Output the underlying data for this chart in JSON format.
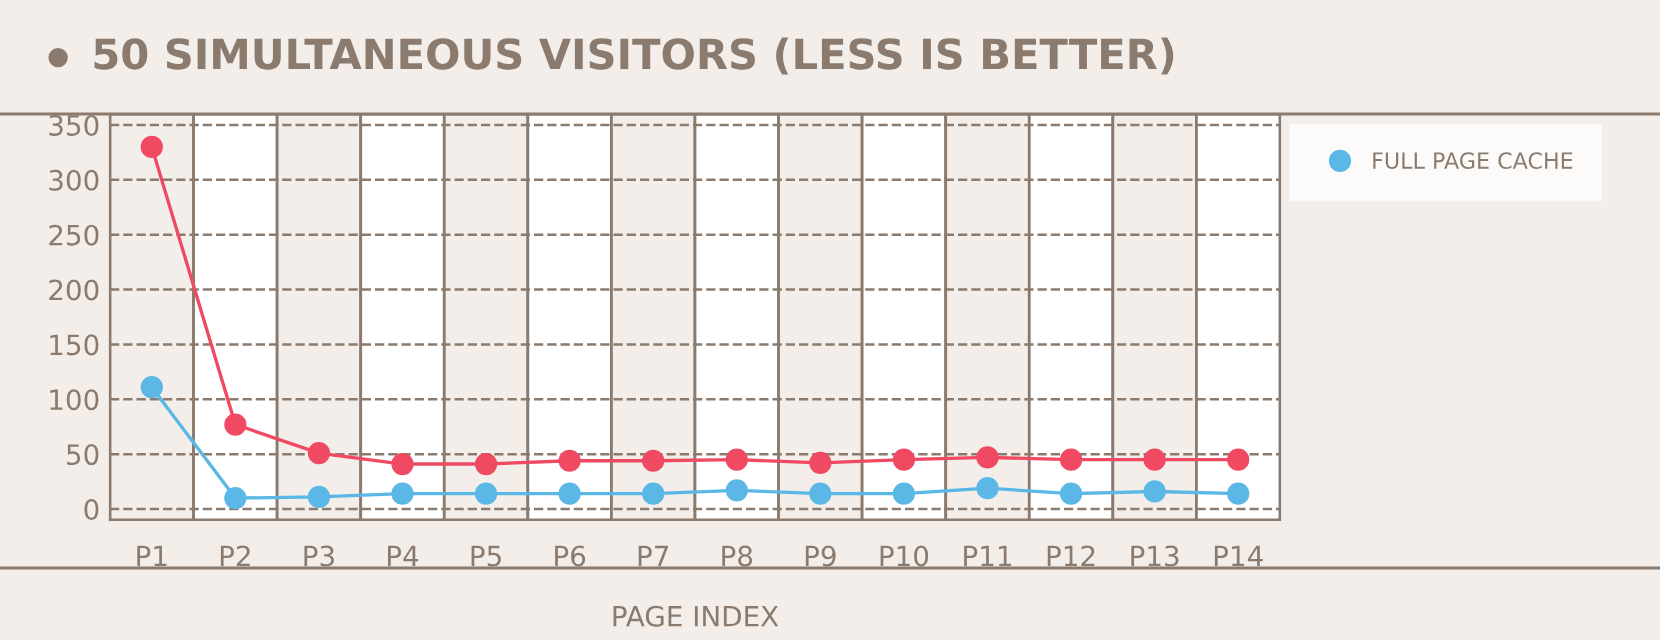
{
  "chart_data": {
    "type": "line",
    "title": "50 SIMULTANEOUS VISITORS (LESS IS BETTER)",
    "xlabel": "PAGE INDEX",
    "categories": [
      "P1",
      "P2",
      "P3",
      "P4",
      "P5",
      "P6",
      "P7",
      "P8",
      "P9",
      "P10",
      "P11",
      "P12",
      "P13",
      "P14"
    ],
    "series": [
      {
        "name": "FULL PAGE CACHE",
        "color": "#5bb8e6",
        "values": [
          111,
          10,
          11,
          14,
          14,
          14,
          14,
          17,
          14,
          14,
          19,
          14,
          16,
          14
        ]
      },
      {
        "color": "#f04a63",
        "values": [
          330,
          77,
          51,
          41,
          41,
          44,
          44,
          45,
          42,
          45,
          47,
          45,
          45,
          45
        ]
      }
    ],
    "ylim": [
      -10,
      360
    ],
    "yticks": [
      0,
      50,
      100,
      150,
      200,
      250,
      300,
      350
    ],
    "grid": "y",
    "legend": "top right",
    "marker": "circle",
    "line_style": "solid"
  }
}
